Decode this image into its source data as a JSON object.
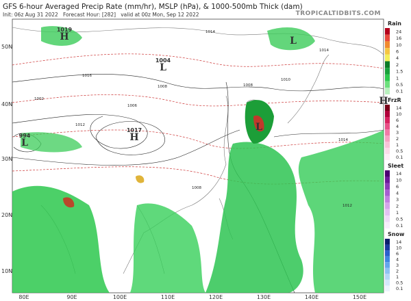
{
  "header": {
    "title": "GFS 6-hour Averaged Precip Rate (mm/hr), MSLP (hPa), & 1000-500mb Thick (dam)",
    "subtitle": "Init: 06z Aug 31 2022   Forecast Hour: [282]   valid at 00z Mon, Sep 12 2022",
    "watermark": "TROPICALTIDBITS.COM"
  },
  "map": {
    "latitudes": [
      "50N",
      "40N",
      "30N",
      "20N",
      "10N"
    ],
    "longitudes": [
      "80E",
      "90E",
      "100E",
      "110E",
      "120E",
      "130E",
      "140E",
      "150E"
    ],
    "pressure_centers": [
      {
        "letter": "H",
        "value": 1019
      },
      {
        "letter": "L",
        "value": 1004
      },
      {
        "letter": "H",
        "value": 1017
      },
      {
        "letter": "L",
        "value": 994
      },
      {
        "letter": "L"
      },
      {
        "letter": "L"
      },
      {
        "letter": "H"
      }
    ],
    "isobar_labels": [
      1014,
      1014,
      1008,
      1006,
      1002,
      1008,
      1014,
      1012,
      1008,
      1012,
      1016,
      1010
    ]
  },
  "legend": [
    {
      "name": "Rain",
      "labels": [
        24,
        16,
        10,
        6,
        4,
        2,
        1.5,
        1,
        0.5,
        0.1
      ]
    },
    {
      "name": "FrzR",
      "labels": [
        14,
        10,
        6,
        4,
        3,
        2,
        1,
        0.5,
        0.1
      ]
    },
    {
      "name": "Sleet",
      "labels": [
        14,
        10,
        6,
        4,
        3,
        2,
        1,
        0.5,
        0.1
      ]
    },
    {
      "name": "Snow",
      "labels": [
        14,
        10,
        6,
        4,
        3,
        2,
        1,
        0.5,
        0.1
      ]
    }
  ]
}
